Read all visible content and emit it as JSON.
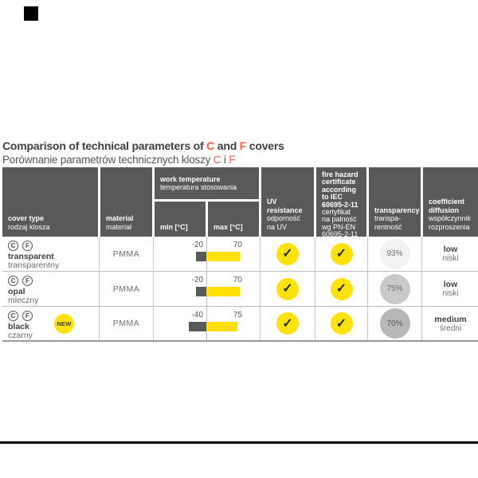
{
  "page": {
    "title": {
      "prefix": "Comparison of technical parameters of ",
      "c": "C",
      "mid": " and ",
      "f": "F",
      "suffix": " covers"
    },
    "subtitle": {
      "prefix": "Porównanie parametrów technicznych kloszy ",
      "c": "C",
      "mid": " i ",
      "f": "F"
    }
  },
  "colors": {
    "accent_orange": "#f15f43",
    "accent_yellow": "#ffe20a",
    "header_gray": "#58595b",
    "bar_dark": "#58595b",
    "bar_yellow": "#ffe000",
    "circle_93": "#f2f2f3",
    "circle_75": "#c8c9cb",
    "circle_70": "#b5b7b9"
  },
  "icons": {
    "check": "✓"
  },
  "table": {
    "headers": {
      "cover": {
        "en": "cover type",
        "pl": "rodzaj klosza"
      },
      "material": {
        "en": "material",
        "pl": "materiał"
      },
      "work_temp": {
        "en": "work temperature",
        "pl": "temperatura stosowania",
        "min": "min [°C]",
        "max": "max [°C]"
      },
      "uv": {
        "en": "UV\nresistance",
        "pl": "odporność\nna UV"
      },
      "fire": {
        "en": "fire hazard\ncertificate\naccording\nto IEC\n60695-2-11",
        "pl": "certyfikat\nna palność\nwg PN-EN\n60695-2-11"
      },
      "transparency": {
        "en": "transparency",
        "pl": "transpa-\nrentność"
      },
      "coefficient": {
        "en": "coefficient\ndiffusion",
        "pl": "współczynnik\nrozproszenia"
      }
    },
    "rows": [
      {
        "cf": [
          "C",
          "F"
        ],
        "name_en": "transparent",
        "name_pl": "transparentny",
        "material": "PMMA",
        "temp_min": "-20",
        "temp_max": "70",
        "transparency": "93%",
        "coeff_en": "low",
        "coeff_pl": "niski"
      },
      {
        "cf": [
          "C",
          "F"
        ],
        "name_en": "opal",
        "name_pl": "mleczny",
        "material": "PMMA",
        "temp_min": "-20",
        "temp_max": "70",
        "transparency": "75%",
        "coeff_en": "low",
        "coeff_pl": "niski"
      },
      {
        "cf": [
          "C",
          "F"
        ],
        "name_en": "black",
        "name_pl": "czarny",
        "new_badge": "NEW",
        "material": "PMMA",
        "temp_min": "-40",
        "temp_max": "75",
        "transparency": "70%",
        "coeff_en": "medium",
        "coeff_pl": "średni"
      }
    ]
  },
  "chart_data": {
    "type": "table",
    "title": "Comparison of technical parameters of C and F covers",
    "columns": [
      "cover type",
      "material",
      "work temperature min [°C]",
      "work temperature max [°C]",
      "UV resistance",
      "fire hazard certificate according to IEC 60695-2-11",
      "transparency",
      "coefficient diffusion"
    ],
    "rows": [
      [
        "transparent / transparentny",
        "PMMA",
        -20,
        70,
        true,
        true,
        "93%",
        "low / niski"
      ],
      [
        "opal / mleczny",
        "PMMA",
        -20,
        70,
        true,
        true,
        "75%",
        "low / niski"
      ],
      [
        "black / czarny (NEW)",
        "PMMA",
        -40,
        75,
        true,
        true,
        "70%",
        "medium / średni"
      ]
    ]
  }
}
